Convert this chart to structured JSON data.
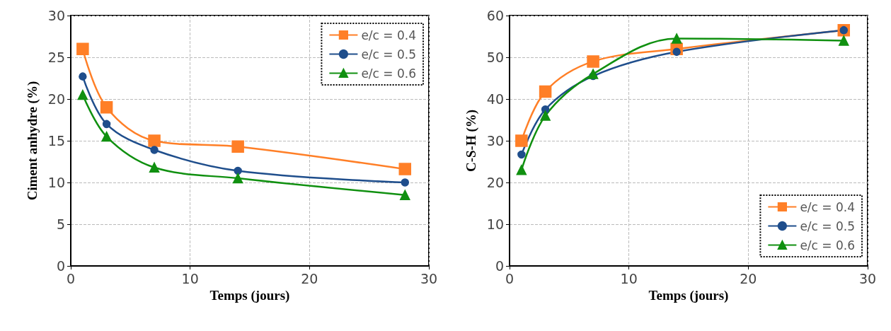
{
  "chart_data": [
    {
      "type": "line",
      "xlabel": "Temps (jours)",
      "ylabel": "Ciment anhydre (%)",
      "xlim": [
        0,
        30
      ],
      "xticks": [
        0,
        10,
        20,
        30
      ],
      "ylim": [
        0,
        30
      ],
      "yticks": [
        0,
        5,
        10,
        15,
        20,
        25,
        30
      ],
      "grid": true,
      "legend": "top right",
      "x": [
        1,
        3,
        7,
        14,
        28
      ],
      "series": [
        {
          "name": "e/c = 0.4",
          "color": "#ff7f27",
          "marker": "square",
          "values": [
            26,
            19,
            15,
            14.3,
            11.6
          ]
        },
        {
          "name": "e/c = 0.5",
          "color": "#1f4e8c",
          "marker": "circle",
          "values": [
            22.7,
            17,
            13.9,
            11.4,
            10
          ]
        },
        {
          "name": "e/c = 0.6",
          "color": "#109010",
          "marker": "triangle",
          "values": [
            20.5,
            15.5,
            11.8,
            10.5,
            8.5
          ]
        }
      ]
    },
    {
      "type": "line",
      "xlabel": "Temps (jours)",
      "ylabel": "C-S-H (%)",
      "xlim": [
        0,
        30
      ],
      "xticks": [
        0,
        10,
        20,
        30
      ],
      "ylim": [
        0,
        60
      ],
      "yticks": [
        0,
        10,
        20,
        30,
        40,
        50,
        60
      ],
      "grid": true,
      "legend": "bottom right",
      "x": [
        1,
        3,
        7,
        14,
        28
      ],
      "series": [
        {
          "name": "e/c = 0.4",
          "color": "#ff7f27",
          "marker": "square",
          "values": [
            30,
            41.8,
            49,
            52,
            56.5
          ]
        },
        {
          "name": "e/c = 0.5",
          "color": "#1f4e8c",
          "marker": "circle",
          "values": [
            26.7,
            37.5,
            45.5,
            51.3,
            56.5
          ]
        },
        {
          "name": "e/c = 0.6",
          "color": "#109010",
          "marker": "triangle",
          "values": [
            23,
            36,
            46,
            54.5,
            54
          ]
        }
      ]
    }
  ]
}
